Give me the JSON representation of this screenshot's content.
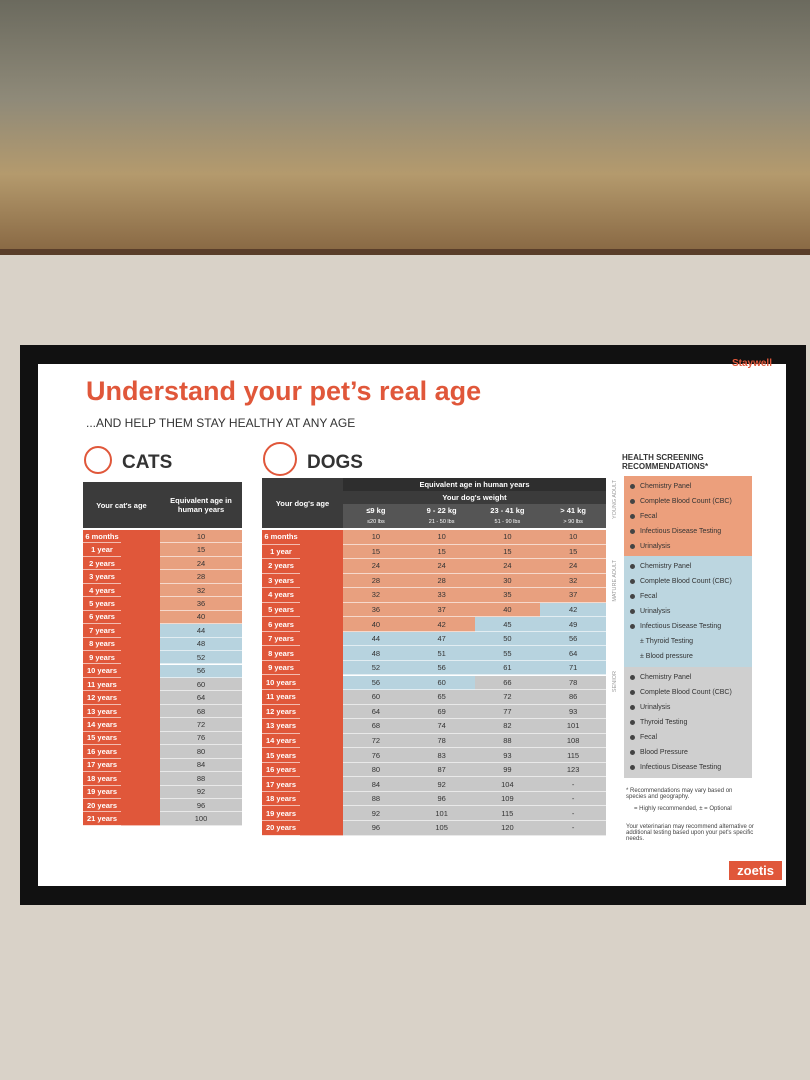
{
  "header": {
    "brand": "Staywell",
    "title": "Understand your pet’s real age",
    "subtitle": "...AND HELP THEM STAY HEALTHY AT ANY AGE"
  },
  "cats": {
    "heading": "CATS",
    "age_header": "Your cat's age",
    "equiv_header": "Equivalent age in human years",
    "rows": [
      [
        "6 months",
        10
      ],
      [
        "1 year",
        15
      ],
      [
        "2 years",
        24
      ],
      [
        "3 years",
        28
      ],
      [
        "4 years",
        32
      ],
      [
        "5 years",
        36
      ],
      [
        "6 years",
        40
      ],
      [
        "7 years",
        44
      ],
      [
        "8 years",
        48
      ],
      [
        "9 years",
        52
      ],
      [
        "10 years",
        56
      ],
      [
        "11 years",
        60
      ],
      [
        "12 years",
        64
      ],
      [
        "13 years",
        68
      ],
      [
        "14 years",
        72
      ],
      [
        "15 years",
        76
      ],
      [
        "16 years",
        80
      ],
      [
        "17 years",
        84
      ],
      [
        "18 years",
        88
      ],
      [
        "19 years",
        92
      ],
      [
        "20 years",
        96
      ],
      [
        "21 years",
        100
      ]
    ]
  },
  "dogs": {
    "heading": "DOGS",
    "age_header": "Your dog's age",
    "equiv_header": "Equivalent age in human years",
    "weight_header": "Your dog's weight",
    "weights": [
      [
        "≤9 kg",
        "≤20 lbs"
      ],
      [
        "9 - 22 kg",
        "21 - 50 lbs"
      ],
      [
        "23 - 41 kg",
        "51 - 90 lbs"
      ],
      [
        "> 41 kg",
        "> 90 lbs"
      ]
    ],
    "rows": [
      [
        "6 months",
        10,
        10,
        10,
        10
      ],
      [
        "1 year",
        15,
        15,
        15,
        15
      ],
      [
        "2 years",
        24,
        24,
        24,
        24
      ],
      [
        "3 years",
        28,
        28,
        30,
        32
      ],
      [
        "4 years",
        32,
        33,
        35,
        37
      ],
      [
        "5 years",
        36,
        37,
        40,
        42
      ],
      [
        "6 years",
        40,
        42,
        45,
        49
      ],
      [
        "7 years",
        44,
        47,
        50,
        56
      ],
      [
        "8 years",
        48,
        51,
        55,
        64
      ],
      [
        "9 years",
        52,
        56,
        61,
        71
      ],
      [
        "10 years",
        56,
        60,
        66,
        78
      ],
      [
        "11 years",
        60,
        65,
        72,
        86
      ],
      [
        "12 years",
        64,
        69,
        77,
        93
      ],
      [
        "13 years",
        68,
        74,
        82,
        101
      ],
      [
        "14 years",
        72,
        78,
        88,
        108
      ],
      [
        "15 years",
        76,
        83,
        93,
        115
      ],
      [
        "16 years",
        80,
        87,
        99,
        123
      ],
      [
        "17 years",
        84,
        92,
        104,
        "-"
      ],
      [
        "18 years",
        88,
        96,
        109,
        "-"
      ],
      [
        "19 years",
        92,
        101,
        115,
        "-"
      ],
      [
        "20 years",
        96,
        105,
        120,
        "-"
      ]
    ]
  },
  "screening": {
    "title": "HEALTH SCREENING RECOMMENDATIONS*",
    "groups": [
      {
        "label": "YOUNG ADULT",
        "items": [
          "Chemistry Panel",
          "Complete Blood Count (CBC)",
          "Fecal",
          "Infectious Disease Testing",
          "Urinalysis"
        ]
      },
      {
        "label": "MATURE ADULT",
        "items": [
          "Chemistry Panel",
          "Complete Blood Count (CBC)",
          "Fecal",
          "Urinalysis",
          "Infectious Disease Testing",
          "± Thyroid Testing",
          "± Blood pressure"
        ]
      },
      {
        "label": "SENIOR",
        "items": [
          "Chemistry Panel",
          "Complete Blood Count (CBC)",
          "Urinalysis",
          "Thyroid Testing",
          "Fecal",
          "Blood Pressure",
          "Infectious Disease Testing"
        ]
      }
    ],
    "notes": [
      "* Recommendations may vary based on species and geography.",
      "= Highly recommended, ± = Optional",
      "Your veterinarian may recommend alternative or additional testing based upon your pet's specific needs."
    ]
  },
  "footer": {
    "brand": "zoetis"
  }
}
